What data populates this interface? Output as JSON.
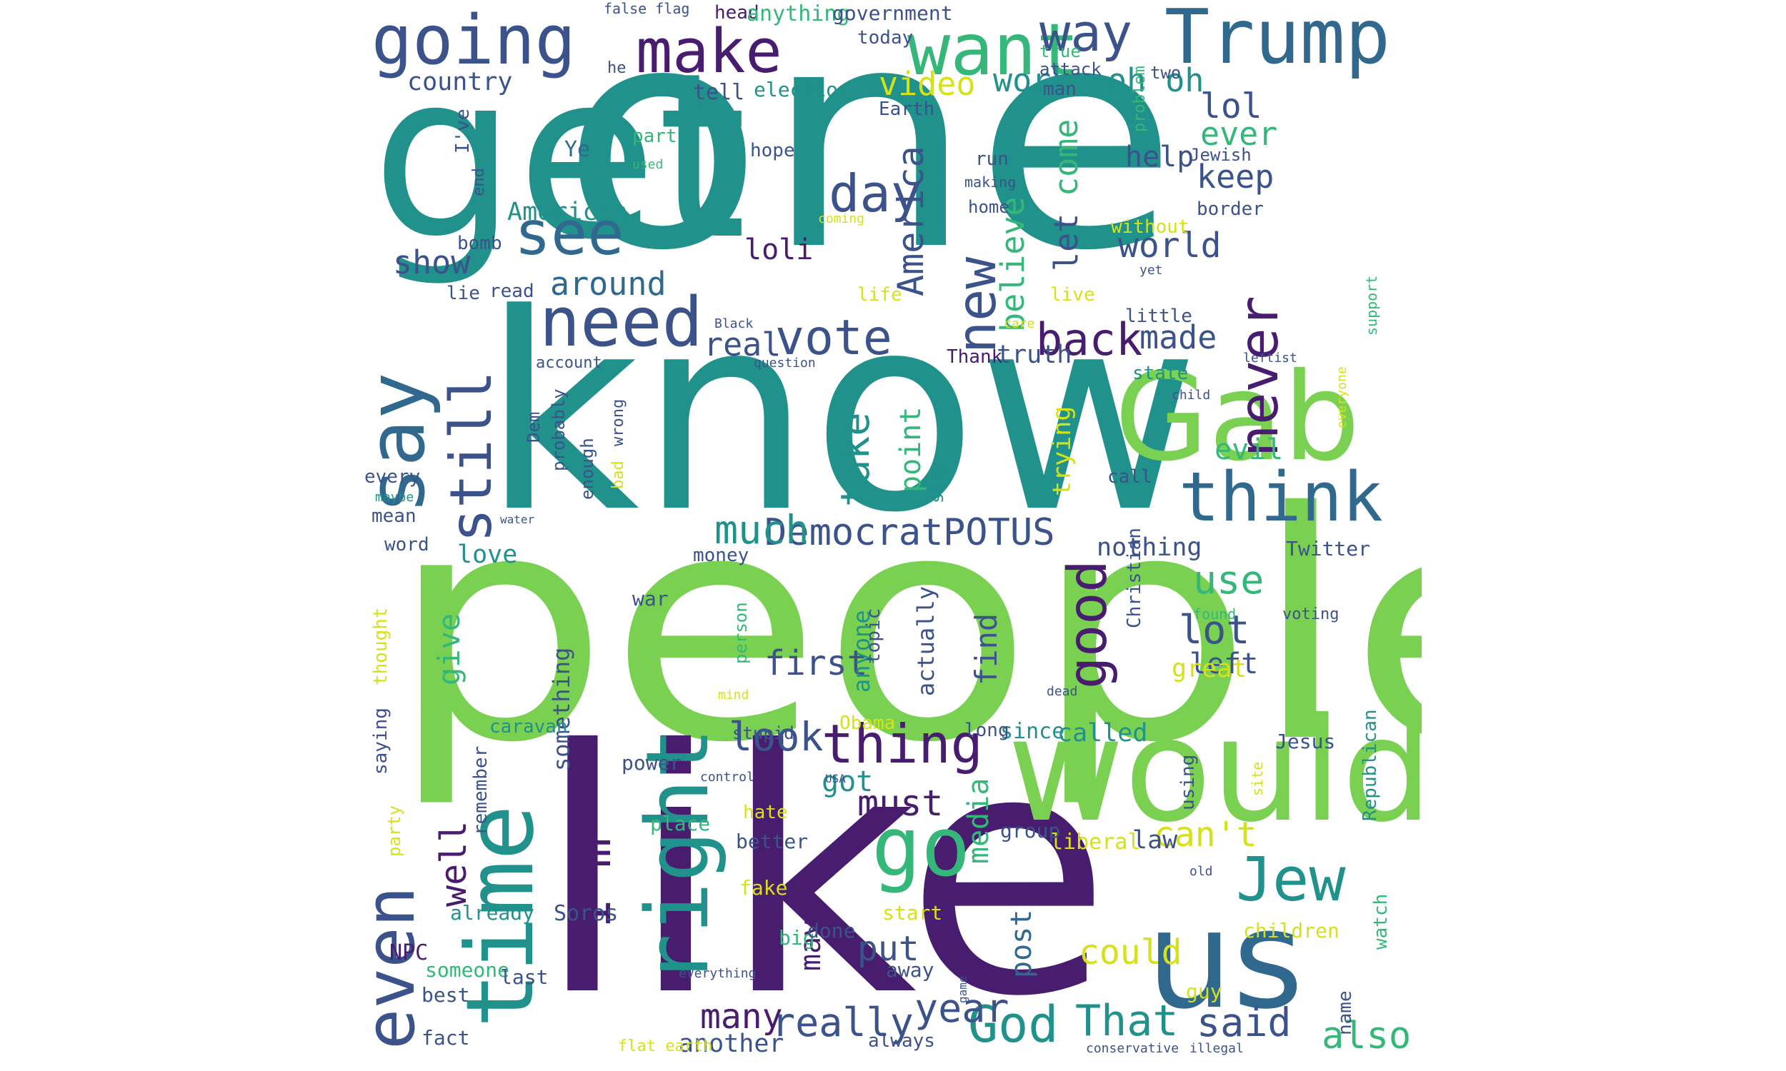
{
  "words": {
    "one": "one",
    "people": "people",
    "know": "know",
    "like": "like",
    "get": "get",
    "would": "would",
    "gab": "Gab",
    "us": "us",
    "time": "time",
    "going": "going",
    "trump": "Trump",
    "want": "want",
    "make": "make",
    "say": "say",
    "think": "think",
    "right": "right",
    "go": "go",
    "jew": "Jew",
    "need": "need",
    "even": "even",
    "see": "see",
    "still": "still",
    "new": "new",
    "good": "good",
    "never": "never",
    "im": "I'm",
    "thing": "thing",
    "day": "day",
    "vote": "vote",
    "back": "back",
    "way": "way",
    "democrat": "Democrat",
    "potus": "POTUS",
    "god": "God",
    "that": "That",
    "really": "really",
    "year": "year",
    "said": "said",
    "also": "also",
    "much": "much",
    "take": "take",
    "lot": "lot",
    "use": "use",
    "first": "first",
    "look": "look",
    "well": "well",
    "many": "many",
    "must": "must",
    "put": "put",
    "could": "could",
    "cant": "can't",
    "america": "America",
    "believe": "believe",
    "come": "come",
    "world": "world",
    "lol": "lol",
    "ever": "ever",
    "keep": "keep",
    "made": "made",
    "real": "real",
    "around": "around",
    "show": "show",
    "american": "American",
    "video": "video",
    "work": "work",
    "oh_oh": "oh oh",
    "country": "country",
    "ye": "Ye",
    "loli": "loli",
    "let": "let",
    "evil": "evil",
    "help": "help",
    "point": "point",
    "trying": "trying",
    "find": "find",
    "give": "give",
    "something": "something",
    "anyone": "anyone",
    "actually": "actually",
    "media": "media",
    "post": "post",
    "may": "may",
    "got": "got",
    "left": "left",
    "great": "great",
    "nothing": "nothing",
    "love": "love",
    "called": "called",
    "since": "since",
    "another": "another",
    "truth": "truth",
    "law": "law",
    "liberal": "liberal",
    "npc": "NPC",
    "soros": "Soros",
    "fake": "fake",
    "big": "big",
    "someone": "someone",
    "last": "last",
    "start": "start",
    "away": "away",
    "done": "done",
    "children": "children",
    "guy": "guy",
    "watch": "watch",
    "name": "name",
    "republican": "Republican",
    "jesus": "Jesus",
    "christian": "Christian",
    "twitter": "Twitter",
    "voting": "voting",
    "found": "found",
    "old": "old",
    "site": "site",
    "using": "using",
    "group": "group",
    "long": "long",
    "better": "better",
    "hate": "hate",
    "place": "place",
    "power": "power",
    "control": "control",
    "usa": "USA",
    "obama": "Obama",
    "stupid": "stupid",
    "mind": "mind",
    "dead": "dead",
    "war": "war",
    "person": "person",
    "topic": "topic",
    "money": "money",
    "caravan": "caravan",
    "remember": "remember",
    "saying": "saying",
    "thought": "thought",
    "party": "party",
    "already": "already",
    "best": "best",
    "fact": "fact",
    "flat_earth": "flat earth",
    "always": "always",
    "conservative": "conservative",
    "illegal": "illegal",
    "everything": "everything",
    "game": "game",
    "word": "word",
    "mean": "mean",
    "every": "every",
    "maybe": "maybe",
    "water": "water",
    "bad": "bad",
    "enough": "enough",
    "wrong": "wrong",
    "probably": "probably",
    "dem": "Dem",
    "account": "account",
    "question": "question",
    "thank": "Thank",
    "stop": "stop",
    "call": "call",
    "state": "state",
    "child": "child",
    "leftist": "leftist",
    "everyone": "everyone",
    "support": "support",
    "little": "little",
    "live": "live",
    "care": "care",
    "life": "life",
    "black": "Black",
    "read": "read",
    "lie": "lie",
    "bomb": "bomb",
    "end": "end",
    "ive": "I've",
    "part": "part",
    "used": "used",
    "tell": "tell",
    "election": "election",
    "earth": "Earth",
    "today": "today",
    "he": "he",
    "man": "man",
    "two": "two",
    "true": "true",
    "attack": "attack",
    "problem": "problem",
    "jewish": "Jewish",
    "border": "border",
    "without": "without",
    "yet": "yet",
    "run": "run",
    "making": "making",
    "home": "home",
    "hope": "hope",
    "coming": "coming",
    "head": "head",
    "anything": "anything",
    "government": "government",
    "false_flag": "false flag"
  },
  "colors": {
    "background": "#ffffff",
    "purple": "#481c6e",
    "navy": "#3b528b",
    "blue": "#31688e",
    "teal": "#21918c",
    "green": "#35b779",
    "lime": "#7ad151",
    "yellow": "#d5e21a"
  }
}
